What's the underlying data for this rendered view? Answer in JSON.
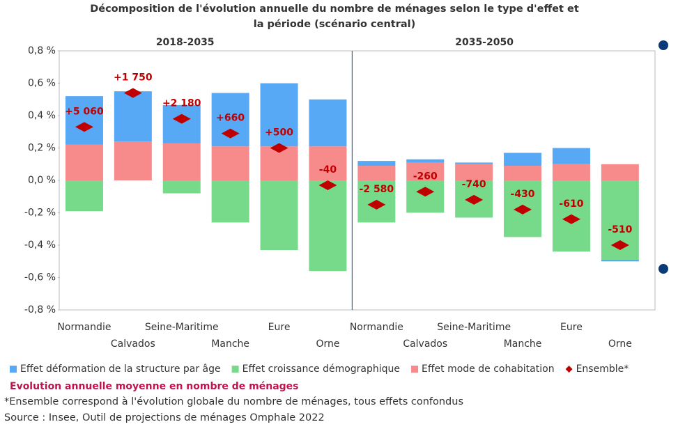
{
  "chart_data": {
    "type": "bar",
    "stacked": true,
    "title": "Décomposition de l'évolution annuelle du nombre de ménages selon le type d'effet et la période (scénario central)",
    "periods": [
      "2018-2035",
      "2035-2050"
    ],
    "categories": [
      "Normandie",
      "Calvados",
      "Seine-Maritime",
      "Manche",
      "Eure",
      "Orne",
      "Normandie",
      "Calvados",
      "Seine-Maritime",
      "Manche",
      "Eure",
      "Orne"
    ],
    "series": [
      {
        "name": "Effet déformation de la structure par âge",
        "color": "#57a8f5",
        "values": [
          0.3,
          0.31,
          0.235,
          0.33,
          0.39,
          0.29,
          0.03,
          0.02,
          0.01,
          0.08,
          0.1,
          -0.01
        ]
      },
      {
        "name": "Effet croissance démographique",
        "color": "#77d98a",
        "values": [
          -0.19,
          0,
          -0.08,
          -0.26,
          -0.43,
          -0.56,
          -0.26,
          -0.2,
          -0.23,
          -0.35,
          -0.44,
          -0.49
        ]
      },
      {
        "name": "Effet mode de cohabitation",
        "color": "#f78a8a",
        "values": [
          0.22,
          0.24,
          0.23,
          0.21,
          0.21,
          0.21,
          0.09,
          0.11,
          0.1,
          0.09,
          0.1,
          0.1
        ]
      },
      {
        "name": "Ensemble*",
        "color": "#c00000",
        "type": "scatter",
        "values": [
          0.33,
          0.54,
          0.38,
          0.29,
          0.2,
          -0.03,
          -0.15,
          -0.07,
          -0.12,
          -0.18,
          -0.24,
          -0.4
        ]
      }
    ],
    "annotations": [
      "+5 060",
      "+1 750",
      "+2 180",
      "+660",
      "+500",
      "-40",
      "-2 580",
      "-260",
      "-740",
      "-430",
      "-610",
      "-510"
    ],
    "annotations_caption": "Evolution annuelle moyenne en nombre de ménages",
    "ylim": [
      -0.8,
      0.8
    ],
    "yticks": [
      {
        "value": -0.8,
        "label": "-0,8 %"
      },
      {
        "value": -0.6,
        "label": "-0,6 %"
      },
      {
        "value": -0.4,
        "label": "-0,4 %"
      },
      {
        "value": -0.2,
        "label": "-0,2 %"
      },
      {
        "value": 0,
        "label": "0,0 %"
      },
      {
        "value": 0.2,
        "label": "0,2 %"
      },
      {
        "value": 0.4,
        "label": "0,4 %"
      },
      {
        "value": 0.6,
        "label": "0,6 %"
      },
      {
        "value": 0.8,
        "label": "0,8 %"
      }
    ],
    "grid": false,
    "legend": "bottom",
    "footnote": "*Ensemble correspond à l'évolution globale du nombre de ménages, tous effets confondus",
    "source": "Source : Insee, Outil de projections de ménages Omphale 2022"
  }
}
